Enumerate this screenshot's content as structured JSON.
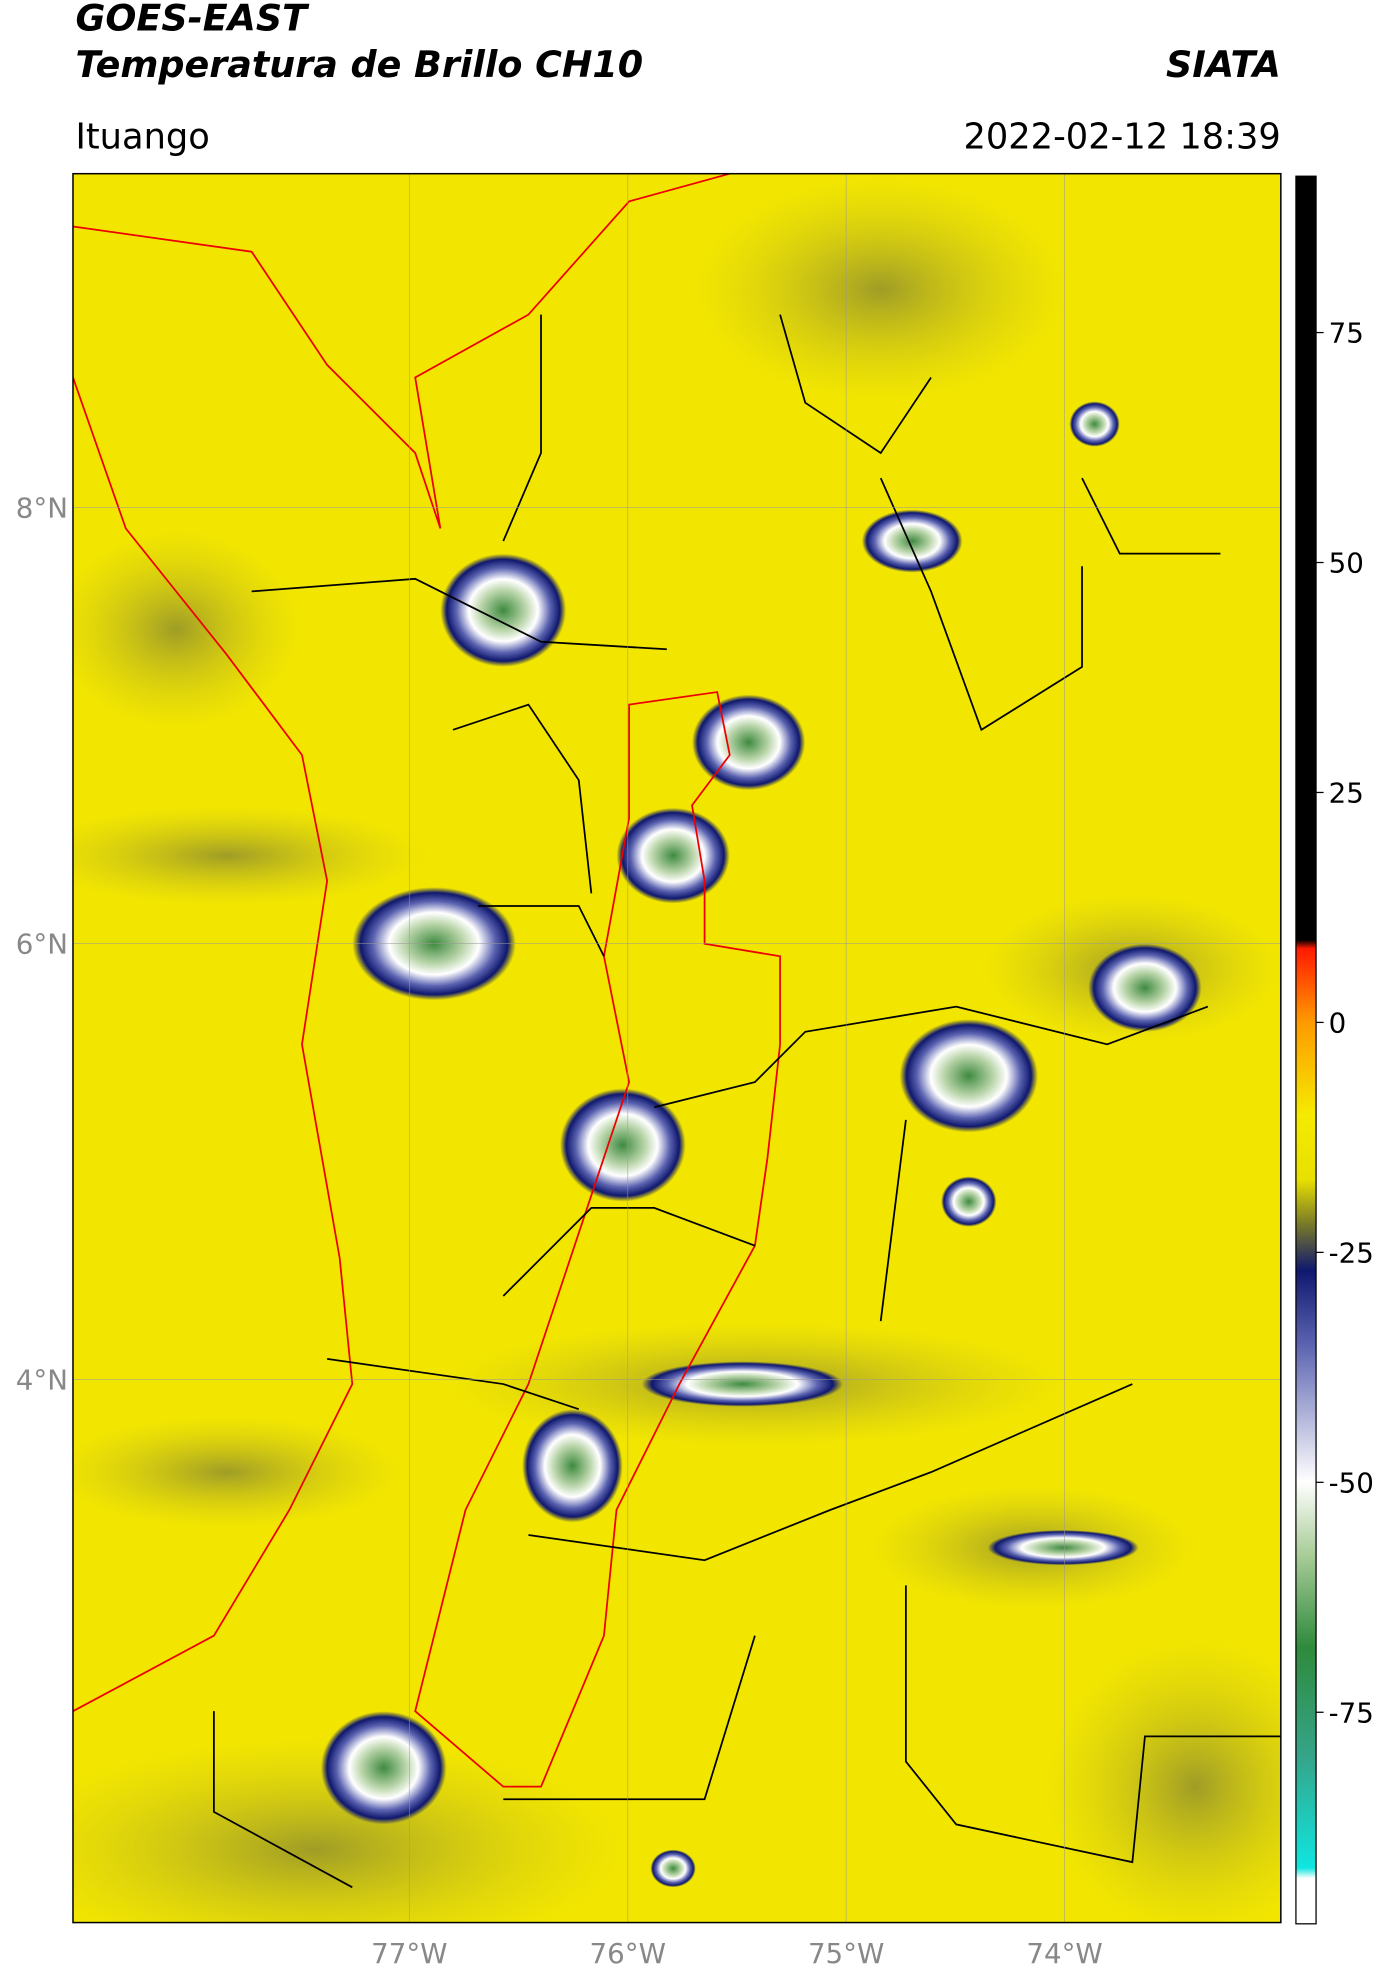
{
  "header": {
    "title": "GOES-EAST",
    "subtitle": "Temperatura de Brillo CH10",
    "source": "SIATA",
    "location": "Ituango",
    "datetime": "2022-02-12 18:39"
  },
  "map": {
    "xlim": [
      -78.54,
      -73.01
    ],
    "ylim": [
      1.51,
      9.53
    ],
    "lat_ticks": [
      {
        "value": 8,
        "label": "8°N"
      },
      {
        "value": 6,
        "label": "6°N"
      },
      {
        "value": 4,
        "label": "4°N"
      }
    ],
    "lon_ticks": [
      {
        "value": -77,
        "label": "77°W"
      },
      {
        "value": -76,
        "label": "76°W"
      },
      {
        "value": -75,
        "label": "75°W"
      },
      {
        "value": -74,
        "label": "74°W"
      }
    ]
  },
  "colorbar": {
    "range": [
      -98,
      92
    ],
    "ticks": [
      75,
      50,
      25,
      0,
      -25,
      -50,
      -75
    ]
  }
}
